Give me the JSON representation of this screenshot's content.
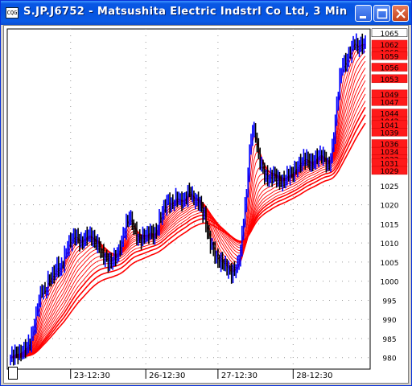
{
  "window": {
    "title": "S.JP.J6752 - Matsushita Electric Indstrl Co Ltd, 3 Min",
    "icon_label": "CQG"
  },
  "chart_data": {
    "type": "candlestick",
    "ylim": [
      977,
      1066
    ],
    "yticks": [
      980,
      985,
      990,
      995,
      1000,
      1005,
      1010,
      1015,
      1020,
      1025
    ],
    "price_labels": [
      1065,
      1062,
      1060,
      1059,
      1056,
      1053,
      1049,
      1047,
      1044,
      1042,
      1041,
      1039,
      1036,
      1034,
      1032,
      1031,
      1029
    ],
    "price_labels_display": [
      "1065",
      "1062",
      "1060",
      "1059",
      "1056",
      "1053",
      "1049",
      "1047",
      "1044",
      "1042",
      "1041",
      "1039",
      "1036",
      "1034",
      "1032",
      "1031",
      "1029"
    ],
    "date_labels": [
      "23-12:30",
      "26-12:30",
      "27-12:30",
      "28-12:30"
    ],
    "price_path": [
      [
        0,
        980
      ],
      [
        3,
        981
      ],
      [
        6,
        981
      ],
      [
        9,
        982
      ],
      [
        11,
        983
      ],
      [
        13,
        984
      ],
      [
        15,
        987
      ],
      [
        17,
        991
      ],
      [
        19,
        995
      ],
      [
        21,
        998
      ],
      [
        23,
        997
      ],
      [
        25,
        1000
      ],
      [
        27,
        1001
      ],
      [
        29,
        1002
      ],
      [
        31,
        1004
      ],
      [
        33,
        1003
      ],
      [
        35,
        1005
      ],
      [
        37,
        1008
      ],
      [
        39,
        1010
      ],
      [
        41,
        1011
      ],
      [
        43,
        1012
      ],
      [
        45,
        1011
      ],
      [
        47,
        1010
      ],
      [
        49,
        1011
      ],
      [
        51,
        1012
      ],
      [
        53,
        1012
      ],
      [
        55,
        1011
      ],
      [
        57,
        1010
      ],
      [
        59,
        1009
      ],
      [
        61,
        1007
      ],
      [
        63,
        1006
      ],
      [
        65,
        1005
      ],
      [
        67,
        1005
      ],
      [
        69,
        1006
      ],
      [
        71,
        1007
      ],
      [
        73,
        1009
      ],
      [
        75,
        1012
      ],
      [
        77,
        1015
      ],
      [
        79,
        1017
      ],
      [
        81,
        1015
      ],
      [
        83,
        1013
      ],
      [
        85,
        1011
      ],
      [
        87,
        1011
      ],
      [
        89,
        1012
      ],
      [
        91,
        1012
      ],
      [
        93,
        1013
      ],
      [
        95,
        1012
      ],
      [
        97,
        1013
      ],
      [
        99,
        1016
      ],
      [
        101,
        1018
      ],
      [
        103,
        1020
      ],
      [
        105,
        1021
      ],
      [
        107,
        1020
      ],
      [
        109,
        1021
      ],
      [
        111,
        1022
      ],
      [
        113,
        1021
      ],
      [
        115,
        1021
      ],
      [
        117,
        1022
      ],
      [
        119,
        1024
      ],
      [
        121,
        1022
      ],
      [
        123,
        1021
      ],
      [
        125,
        1021
      ],
      [
        127,
        1019
      ],
      [
        129,
        1017
      ],
      [
        131,
        1013
      ],
      [
        133,
        1010
      ],
      [
        135,
        1008
      ],
      [
        137,
        1006
      ],
      [
        139,
        1005
      ],
      [
        141,
        1005
      ],
      [
        143,
        1004
      ],
      [
        145,
        1003
      ],
      [
        147,
        1002
      ],
      [
        149,
        1003
      ],
      [
        151,
        1004
      ],
      [
        153,
        1008
      ],
      [
        155,
        1016
      ],
      [
        157,
        1023
      ],
      [
        159,
        1034
      ],
      [
        161,
        1040
      ],
      [
        163,
        1038
      ],
      [
        165,
        1033
      ],
      [
        167,
        1030
      ],
      [
        169,
        1028
      ],
      [
        171,
        1027
      ],
      [
        173,
        1027
      ],
      [
        175,
        1028
      ],
      [
        177,
        1027
      ],
      [
        179,
        1026
      ],
      [
        181,
        1026
      ],
      [
        183,
        1027
      ],
      [
        185,
        1028
      ],
      [
        187,
        1028
      ],
      [
        189,
        1029
      ],
      [
        191,
        1030
      ],
      [
        193,
        1031
      ],
      [
        195,
        1032
      ],
      [
        197,
        1032
      ],
      [
        199,
        1031
      ],
      [
        201,
        1031
      ],
      [
        203,
        1032
      ],
      [
        205,
        1033
      ],
      [
        207,
        1033
      ],
      [
        209,
        1032
      ],
      [
        211,
        1030
      ],
      [
        213,
        1032
      ],
      [
        215,
        1038
      ],
      [
        217,
        1046
      ],
      [
        219,
        1053
      ],
      [
        221,
        1057
      ],
      [
        223,
        1057
      ],
      [
        225,
        1059
      ],
      [
        227,
        1061
      ],
      [
        229,
        1063
      ],
      [
        231,
        1061
      ],
      [
        233,
        1062
      ],
      [
        236,
        1062
      ]
    ],
    "ribbon_levels": [
      {
        "color": "#ff0000",
        "start": 980,
        "end": 1062
      },
      {
        "color": "#ff0000",
        "start": 981,
        "end": 1060
      },
      {
        "color": "#ff0000",
        "start": 982,
        "end": 1059
      },
      {
        "color": "#ff0000",
        "start": 983,
        "end": 1056
      },
      {
        "color": "#ff0000",
        "start": 984,
        "end": 1053
      }
    ]
  }
}
